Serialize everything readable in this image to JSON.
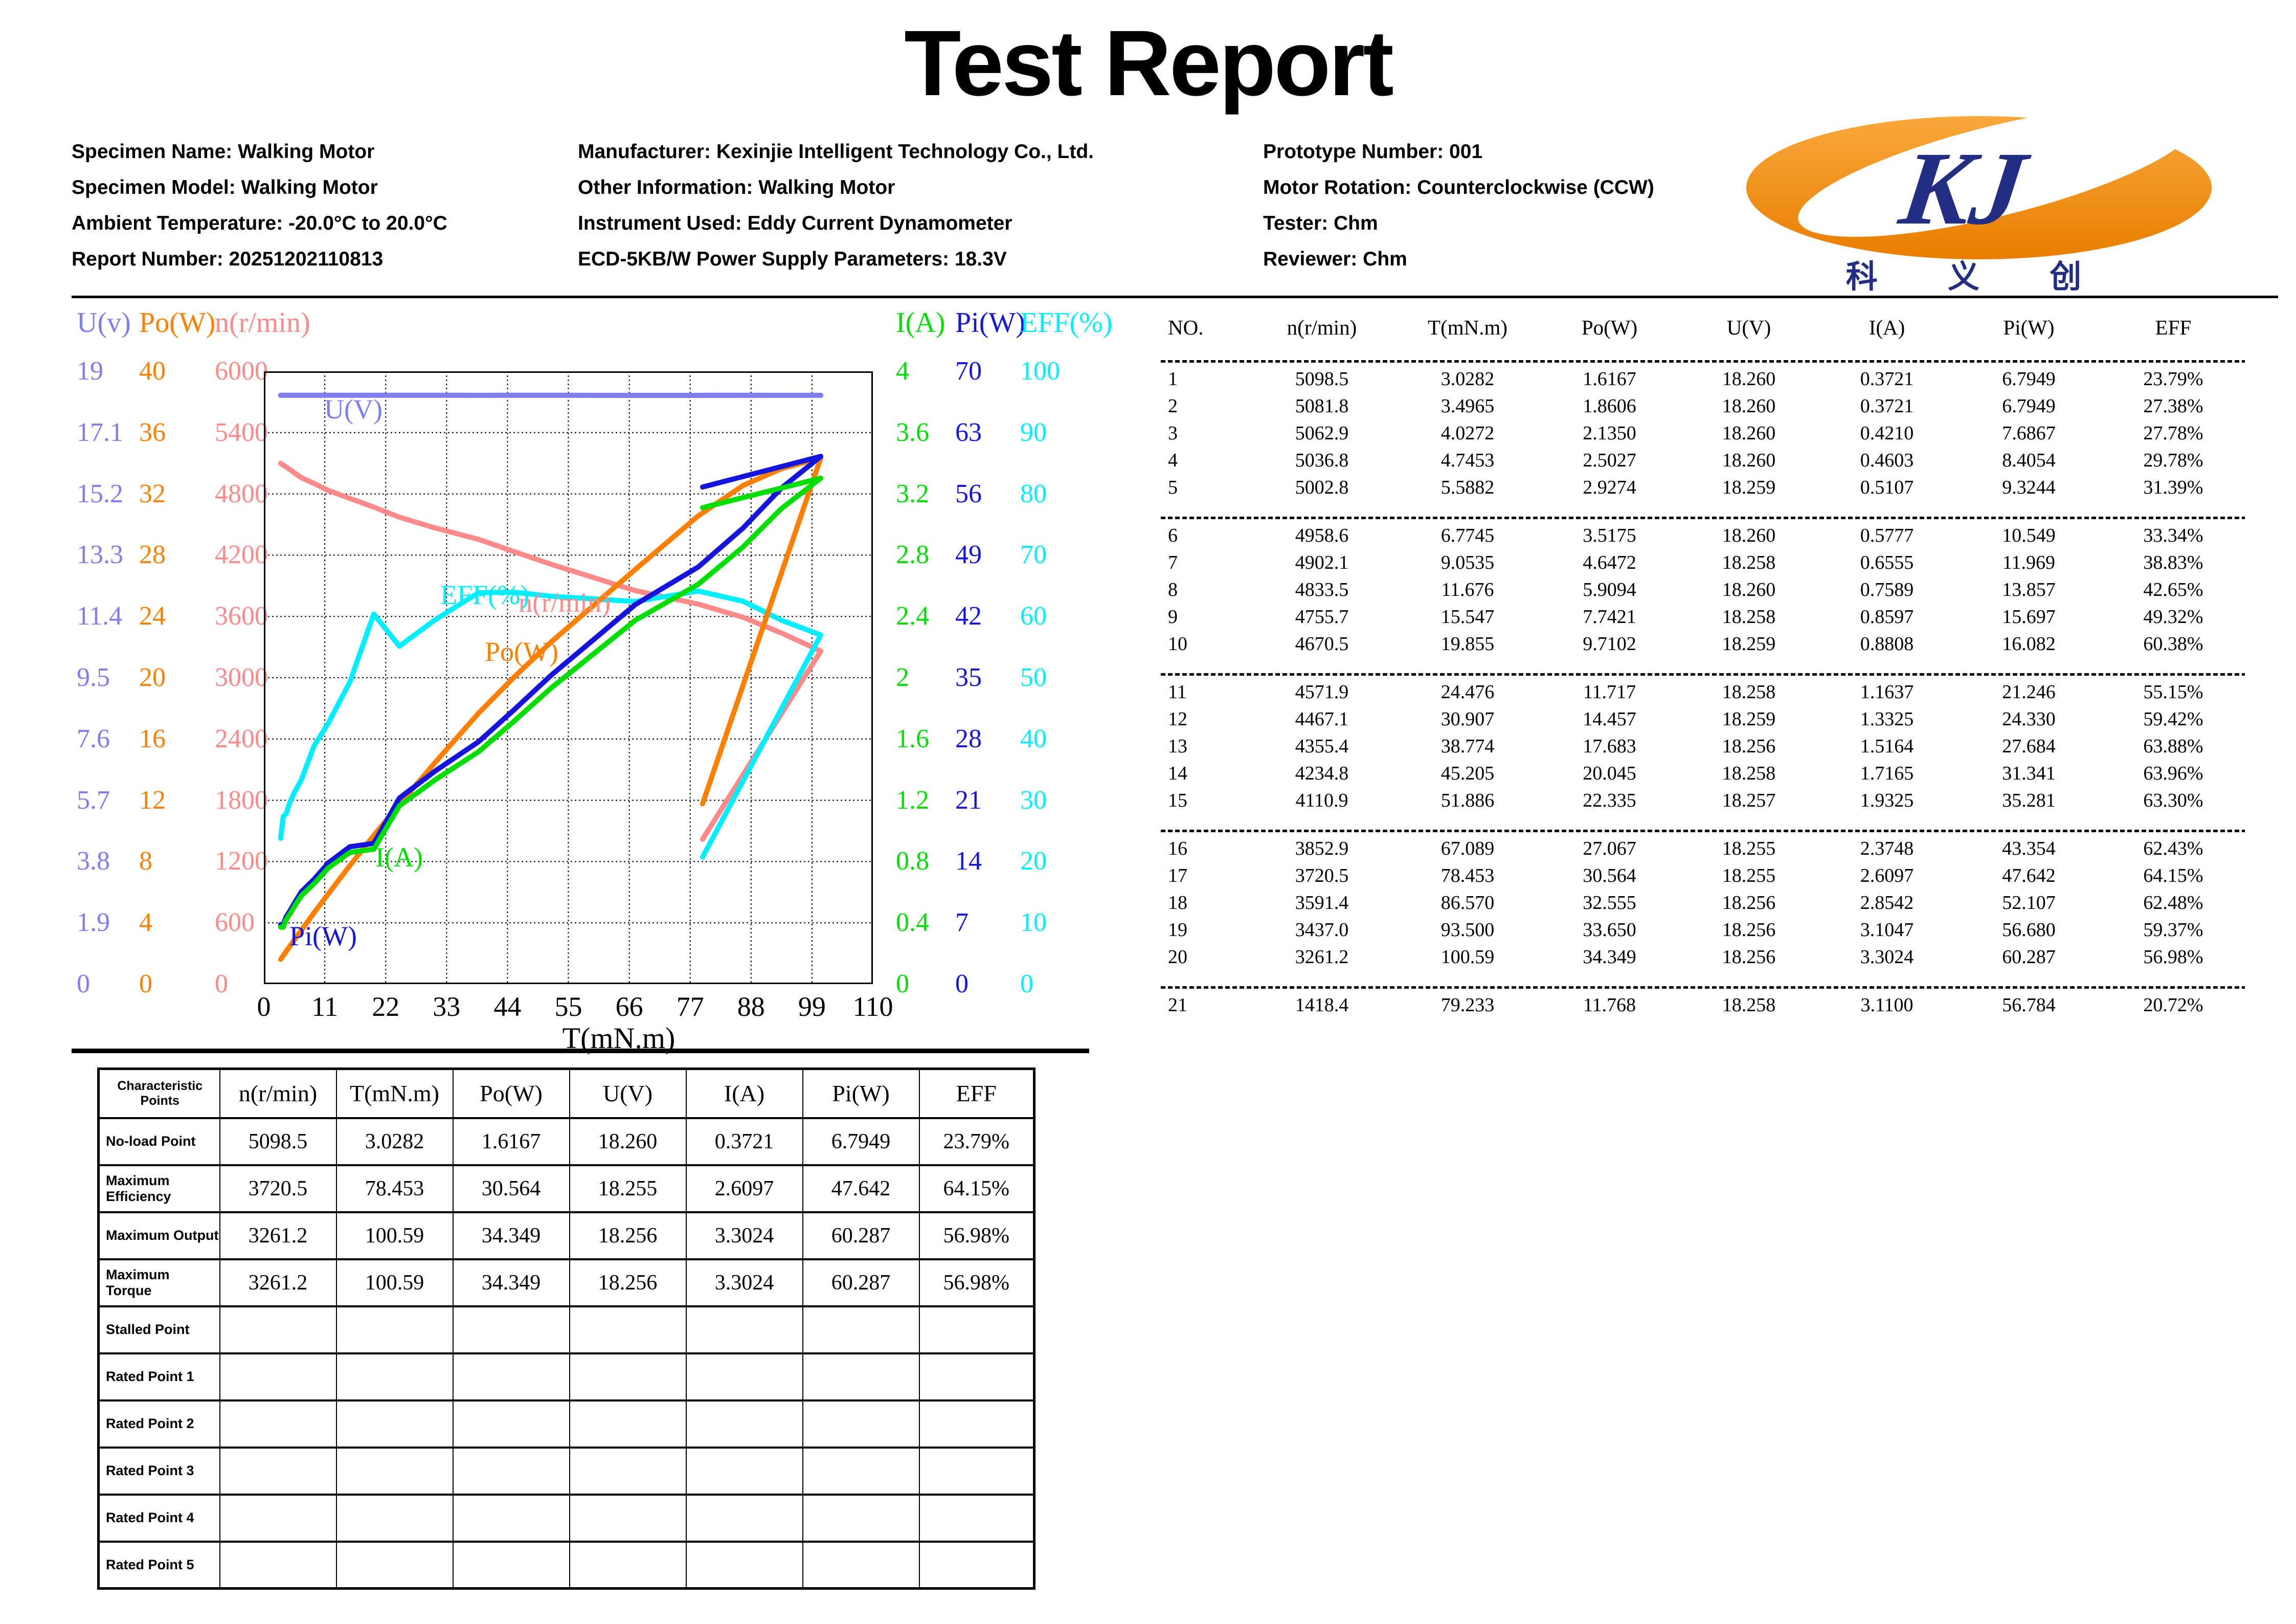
{
  "title": "Test Report",
  "header": {
    "left": [
      "Specimen Name: Walking Motor",
      "Specimen Model: Walking Motor",
      "Ambient Temperature: -20.0°C to 20.0°C",
      "Report Number: 20251202110813"
    ],
    "middle": [
      "Manufacturer: Kexinjie Intelligent Technology Co., Ltd.",
      "Other Information: Walking Motor",
      "Instrument Used: Eddy Current Dynamometer",
      "ECD-5KB/W Power Supply Parameters: 18.3V"
    ],
    "right": [
      "Prototype Number: 001",
      "Motor Rotation: Counterclockwise (CCW)",
      "Tester: Chm",
      "Reviewer: Chm"
    ]
  },
  "logo": {
    "monogram": "KJ",
    "characters": "科 义 创",
    "orange": "#F28C1E",
    "navy": "#232E82"
  },
  "chart_data": {
    "type": "line",
    "xlabel": "T(mN.m)",
    "x_range": [
      0,
      110
    ],
    "grid": true,
    "x_ticks": [
      "0",
      "11",
      "22",
      "33",
      "44",
      "55",
      "66",
      "77",
      "88",
      "99",
      "110"
    ],
    "axes_left": [
      {
        "label": "U(v)",
        "color": "#7E7EF0",
        "max": 19,
        "ticks": [
          "19",
          "17.1",
          "15.2",
          "13.3",
          "11.4",
          "9.5",
          "7.6",
          "5.7",
          "3.8",
          "1.9",
          "0"
        ]
      },
      {
        "label": "Po(W)",
        "color": "#FF8000",
        "max": 40,
        "ticks": [
          "40",
          "36",
          "32",
          "28",
          "24",
          "20",
          "16",
          "12",
          "8",
          "4",
          "0"
        ]
      },
      {
        "label": "n(r/min)",
        "color": "#FF8A8A",
        "max": 6000,
        "ticks": [
          "6000",
          "5400",
          "4800",
          "4200",
          "3600",
          "3000",
          "2400",
          "1800",
          "1200",
          "600",
          "0"
        ]
      }
    ],
    "axes_right": [
      {
        "label": "I(A)",
        "color": "#00DD00",
        "max": 4,
        "ticks": [
          "4",
          "3.6",
          "3.2",
          "2.8",
          "2.4",
          "2",
          "1.6",
          "1.2",
          "0.8",
          "0.4",
          "0"
        ]
      },
      {
        "label": "Pi(W)",
        "color": "#1414DD",
        "max": 70,
        "ticks": [
          "70",
          "63",
          "56",
          "49",
          "42",
          "35",
          "28",
          "21",
          "14",
          "7",
          "0"
        ]
      },
      {
        "label": "EFF(%)",
        "color": "#00EEFF",
        "max": 100,
        "ticks": [
          "100",
          "90",
          "80",
          "70",
          "60",
          "50",
          "40",
          "30",
          "20",
          "10",
          "0"
        ]
      }
    ],
    "x": [
      3.0282,
      3.4965,
      4.0272,
      4.7453,
      5.5882,
      6.7745,
      9.0535,
      11.676,
      15.547,
      19.855,
      24.476,
      30.907,
      38.774,
      45.205,
      51.886,
      67.089,
      78.453,
      86.57,
      93.5,
      100.59,
      79.233
    ],
    "series": [
      {
        "name": "n(r/min)",
        "key": "n",
        "color": "#FF8A8A",
        "max": 6000,
        "values": [
          5098.5,
          5081.8,
          5062.9,
          5036.8,
          5002.8,
          4958.6,
          4902.1,
          4833.5,
          4755.7,
          4670.5,
          4571.9,
          4467.1,
          4355.4,
          4234.8,
          4110.9,
          3852.9,
          3720.5,
          3591.4,
          3437.0,
          3261.2,
          1418.4
        ]
      },
      {
        "name": "EFF(%)",
        "key": "EFF",
        "color": "#00EEFF",
        "max": 100,
        "values": [
          23.79,
          27.38,
          27.78,
          29.78,
          31.39,
          33.34,
          38.83,
          42.65,
          49.32,
          60.38,
          55.15,
          59.42,
          63.88,
          63.96,
          63.3,
          62.43,
          64.15,
          62.48,
          59.37,
          56.98,
          20.72
        ]
      },
      {
        "name": "Po(W)",
        "key": "Po",
        "color": "#FF8000",
        "max": 40,
        "values": [
          1.6167,
          1.8606,
          2.135,
          2.5027,
          2.9274,
          3.5175,
          4.6472,
          5.9094,
          7.7421,
          9.7102,
          11.717,
          14.457,
          17.683,
          20.045,
          22.335,
          27.067,
          30.564,
          32.555,
          33.65,
          34.349,
          11.768
        ]
      },
      {
        "name": "Pi(W)",
        "key": "Pi",
        "color": "#1414DD",
        "max": 70,
        "values": [
          6.7949,
          6.7949,
          7.6867,
          8.4054,
          9.3244,
          10.549,
          11.969,
          13.857,
          15.697,
          16.082,
          21.246,
          24.33,
          27.684,
          31.341,
          35.281,
          43.354,
          47.642,
          52.107,
          56.68,
          60.287,
          56.784
        ]
      },
      {
        "name": "I(A)",
        "key": "I",
        "color": "#00DD00",
        "max": 4,
        "values": [
          0.3721,
          0.3721,
          0.421,
          0.4603,
          0.5107,
          0.5777,
          0.6555,
          0.7589,
          0.8597,
          0.8808,
          1.1637,
          1.3325,
          1.5164,
          1.7165,
          1.9325,
          2.3748,
          2.6097,
          2.8542,
          3.1047,
          3.3024,
          3.11
        ]
      },
      {
        "name": "U(V)",
        "key": "U",
        "color": "#7E7EF0",
        "max": 19,
        "values": [
          18.26,
          18.26,
          18.26,
          18.26,
          18.259,
          18.26,
          18.258,
          18.26,
          18.258,
          18.259,
          18.258,
          18.259,
          18.256,
          18.258,
          18.257,
          18.255,
          18.255,
          18.256,
          18.256,
          18.256,
          18.258
        ]
      }
    ]
  },
  "data_table": {
    "headers": [
      "NO.",
      "n(r/min)",
      "T(mN.m)",
      "Po(W)",
      "U(V)",
      "I(A)",
      "Pi(W)",
      "EFF"
    ],
    "groups": [
      [
        [
          "1",
          "5098.5",
          "3.0282",
          "1.6167",
          "18.260",
          "0.3721",
          "6.7949",
          "23.79%"
        ],
        [
          "2",
          "5081.8",
          "3.4965",
          "1.8606",
          "18.260",
          "0.3721",
          "6.7949",
          "27.38%"
        ],
        [
          "3",
          "5062.9",
          "4.0272",
          "2.1350",
          "18.260",
          "0.4210",
          "7.6867",
          "27.78%"
        ],
        [
          "4",
          "5036.8",
          "4.7453",
          "2.5027",
          "18.260",
          "0.4603",
          "8.4054",
          "29.78%"
        ],
        [
          "5",
          "5002.8",
          "5.5882",
          "2.9274",
          "18.259",
          "0.5107",
          "9.3244",
          "31.39%"
        ]
      ],
      [
        [
          "6",
          "4958.6",
          "6.7745",
          "3.5175",
          "18.260",
          "0.5777",
          "10.549",
          "33.34%"
        ],
        [
          "7",
          "4902.1",
          "9.0535",
          "4.6472",
          "18.258",
          "0.6555",
          "11.969",
          "38.83%"
        ],
        [
          "8",
          "4833.5",
          "11.676",
          "5.9094",
          "18.260",
          "0.7589",
          "13.857",
          "42.65%"
        ],
        [
          "9",
          "4755.7",
          "15.547",
          "7.7421",
          "18.258",
          "0.8597",
          "15.697",
          "49.32%"
        ],
        [
          "10",
          "4670.5",
          "19.855",
          "9.7102",
          "18.259",
          "0.8808",
          "16.082",
          "60.38%"
        ]
      ],
      [
        [
          "11",
          "4571.9",
          "24.476",
          "11.717",
          "18.258",
          "1.1637",
          "21.246",
          "55.15%"
        ],
        [
          "12",
          "4467.1",
          "30.907",
          "14.457",
          "18.259",
          "1.3325",
          "24.330",
          "59.42%"
        ],
        [
          "13",
          "4355.4",
          "38.774",
          "17.683",
          "18.256",
          "1.5164",
          "27.684",
          "63.88%"
        ],
        [
          "14",
          "4234.8",
          "45.205",
          "20.045",
          "18.258",
          "1.7165",
          "31.341",
          "63.96%"
        ],
        [
          "15",
          "4110.9",
          "51.886",
          "22.335",
          "18.257",
          "1.9325",
          "35.281",
          "63.30%"
        ]
      ],
      [
        [
          "16",
          "3852.9",
          "67.089",
          "27.067",
          "18.255",
          "2.3748",
          "43.354",
          "62.43%"
        ],
        [
          "17",
          "3720.5",
          "78.453",
          "30.564",
          "18.255",
          "2.6097",
          "47.642",
          "64.15%"
        ],
        [
          "18",
          "3591.4",
          "86.570",
          "32.555",
          "18.256",
          "2.8542",
          "52.107",
          "62.48%"
        ],
        [
          "19",
          "3437.0",
          "93.500",
          "33.650",
          "18.256",
          "3.1047",
          "56.680",
          "59.37%"
        ],
        [
          "20",
          "3261.2",
          "100.59",
          "34.349",
          "18.256",
          "3.3024",
          "60.287",
          "56.98%"
        ]
      ],
      [
        [
          "21",
          "1418.4",
          "79.233",
          "11.768",
          "18.258",
          "3.1100",
          "56.784",
          "20.72%"
        ]
      ]
    ]
  },
  "characteristic_table": {
    "headers": [
      "Characteristic Points",
      "n(r/min)",
      "T(mN.m)",
      "Po(W)",
      "U(V)",
      "I(A)",
      "Pi(W)",
      "EFF"
    ],
    "rows": [
      [
        "No-load Point",
        "5098.5",
        "3.0282",
        "1.6167",
        "18.260",
        "0.3721",
        "6.7949",
        "23.79%"
      ],
      [
        "Maximum Efficiency",
        "3720.5",
        "78.453",
        "30.564",
        "18.255",
        "2.6097",
        "47.642",
        "64.15%"
      ],
      [
        "Maximum Output",
        "3261.2",
        "100.59",
        "34.349",
        "18.256",
        "3.3024",
        "60.287",
        "56.98%"
      ],
      [
        "Maximum Torque",
        "3261.2",
        "100.59",
        "34.349",
        "18.256",
        "3.3024",
        "60.287",
        "56.98%"
      ],
      [
        "Stalled Point",
        "",
        "",
        "",
        "",
        "",
        "",
        ""
      ],
      [
        "Rated Point 1",
        "",
        "",
        "",
        "",
        "",
        "",
        ""
      ],
      [
        "Rated Point 2",
        "",
        "",
        "",
        "",
        "",
        "",
        ""
      ],
      [
        "Rated Point 3",
        "",
        "",
        "",
        "",
        "",
        "",
        ""
      ],
      [
        "Rated Point 4",
        "",
        "",
        "",
        "",
        "",
        "",
        ""
      ],
      [
        "Rated Point 5",
        "",
        "",
        "",
        "",
        "",
        "",
        ""
      ]
    ]
  }
}
